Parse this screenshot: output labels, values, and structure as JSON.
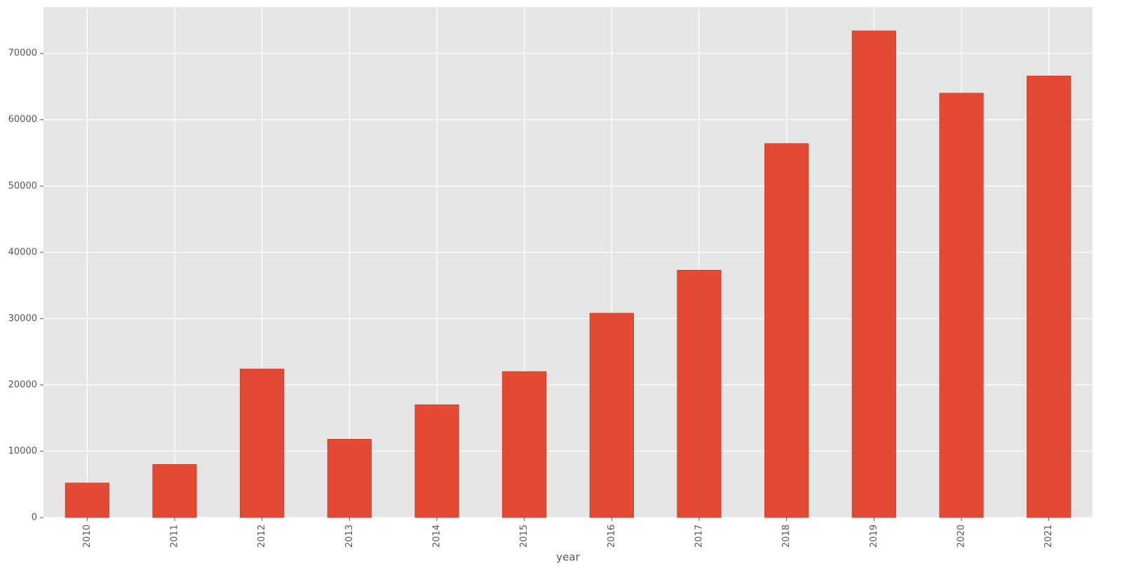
{
  "chart_data": {
    "type": "bar",
    "x_label": "year",
    "categories": [
      "2010",
      "2011",
      "2012",
      "2013",
      "2014",
      "2015",
      "2016",
      "2017",
      "2018",
      "2019",
      "2020",
      "2021"
    ],
    "values": [
      5200,
      8000,
      22400,
      11800,
      17000,
      22000,
      30800,
      37300,
      56400,
      73400,
      64000,
      66600
    ],
    "color": "#e24a33",
    "ylim": [
      0,
      77000
    ],
    "yticks": [
      0,
      10000,
      20000,
      30000,
      40000,
      50000,
      60000,
      70000
    ],
    "grid": true
  }
}
